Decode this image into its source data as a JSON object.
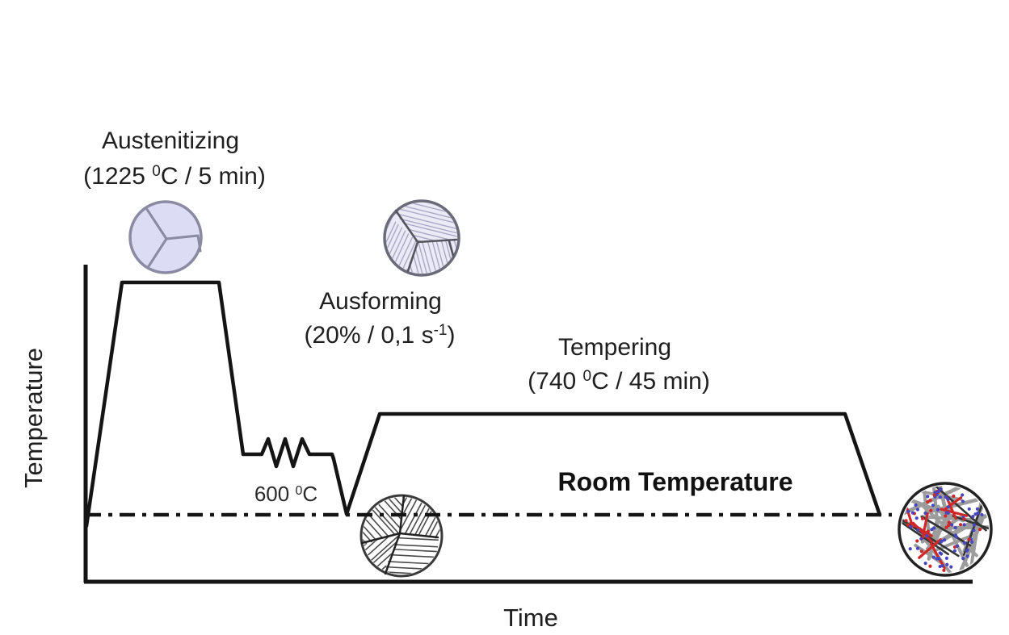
{
  "diagram": {
    "y_axis_label": "Temperature",
    "x_axis_label": "Time",
    "stages": {
      "austenitizing": {
        "title": "Austenitizing",
        "param_pre": "(1225 ",
        "param_sup": "0",
        "param_post": "C / 5 min)",
        "full": "Austenitizing (1225 ⁰C / 5 min)"
      },
      "ausforming": {
        "title": "Ausforming",
        "param_pre": "(20% / 0,1 s",
        "param_sup": "-1",
        "param_post": ")",
        "full": "Ausforming (20% / 0,1 s⁻¹)"
      },
      "tempering": {
        "title": "Tempering",
        "param_pre": "(740 ",
        "param_sup": "0",
        "param_post": "C / 45 min)",
        "full": "Tempering (740 ⁰C / 45 min)"
      }
    },
    "annotations": {
      "deformation_temp": {
        "pre": "600 ",
        "sup": "0",
        "post": "C",
        "full": "600 ⁰C"
      },
      "room_temperature": "Room Temperature"
    },
    "microstructure_icons": [
      {
        "name": "austenite-grains-icon",
        "stage": "Austenitizing"
      },
      {
        "name": "deformed-austenite-grains-icon",
        "stage": "Ausforming"
      },
      {
        "name": "martensite-laths-icon",
        "stage": "After quench"
      },
      {
        "name": "tempered-martensite-carbides-icon",
        "stage": "After tempering"
      }
    ]
  },
  "chart_data": {
    "type": "line",
    "xlabel": "Time",
    "ylabel": "Temperature",
    "reference_line": "Room Temperature",
    "stages": [
      {
        "stage": "Heating",
        "from": "Room Temperature",
        "to_C": 1225
      },
      {
        "stage": "Austenitizing",
        "temperature_C": 1225,
        "duration_min": 5
      },
      {
        "stage": "Cooling to deformation temperature",
        "to_C": 600
      },
      {
        "stage": "Ausforming",
        "temperature_C": 600,
        "strain_pct": 20,
        "strain_rate_per_s": "0,1"
      },
      {
        "stage": "Quench",
        "to": "Room Temperature"
      },
      {
        "stage": "Tempering",
        "temperature_C": 740,
        "duration_min": 45
      },
      {
        "stage": "Final cooling",
        "to": "Room Temperature"
      }
    ]
  },
  "colors": {
    "line": "#141414",
    "text": "#1f1f1f",
    "austenite_fill": "#dcdcf4",
    "deformed_austenite_fill": "#ebebf7",
    "grain_boundary": "#8a8aa2",
    "striation": "#a8a8c4",
    "hatch": "#4a4a4a",
    "lath_gray": "#9c9c9c",
    "boundary_dark": "#333333",
    "carbide_red": "#d02828",
    "carbide_blue": "#4646c2"
  }
}
